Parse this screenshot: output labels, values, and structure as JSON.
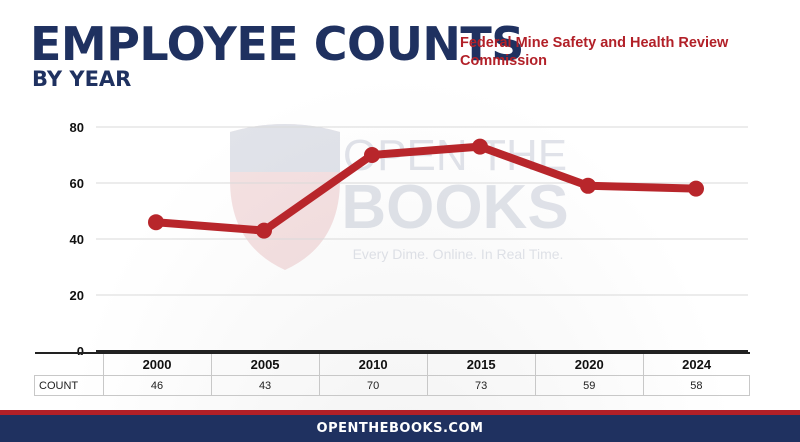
{
  "header": {
    "title": "EMPLOYEE COUNTS",
    "subtitle": "BY YEAR",
    "agency": "Federal Mine Safety and Health Review Commission"
  },
  "watermark": {
    "line1": "OPEN THE",
    "line2": "BOOKS",
    "tagline": "Every Dime. Online. In Real Time."
  },
  "footer": {
    "url": "OPENTHEBOOKS.COM"
  },
  "table": {
    "row_label": "COUNT"
  },
  "colors": {
    "navy": "#1f3160",
    "red": "#b22028",
    "line": "#b8262b"
  },
  "chart_data": {
    "type": "line",
    "categories": [
      "2000",
      "2005",
      "2010",
      "2015",
      "2020",
      "2024"
    ],
    "series": [
      {
        "values": [
          46,
          43,
          70,
          73,
          59,
          58
        ]
      }
    ],
    "value_labels": [
      "46",
      "43",
      "70",
      "73",
      "59",
      "58"
    ],
    "yticks": [
      "0",
      "20",
      "40",
      "60",
      "80"
    ],
    "ylim": [
      0,
      80
    ],
    "xlabel": "",
    "ylabel": "",
    "grid": true,
    "legend": "none"
  }
}
